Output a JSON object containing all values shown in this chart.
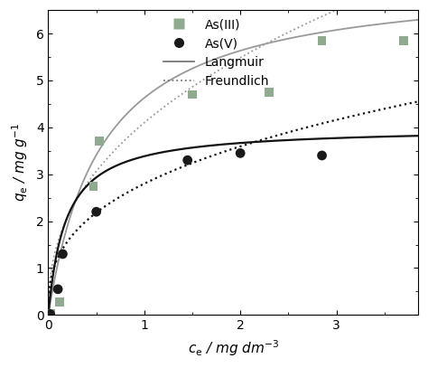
{
  "title": "",
  "xlabel": "$c_\\mathrm{e}$ / mg dm$^{-3}$",
  "ylabel": "$q_\\mathrm{e}$ / mg g$^{-1}$",
  "xlim": [
    0,
    3.85
  ],
  "ylim": [
    0,
    6.5
  ],
  "xticks": [
    0,
    1,
    2,
    3
  ],
  "yticks": [
    0,
    1,
    2,
    3,
    4,
    5,
    6
  ],
  "AsIII_x": [
    0.02,
    0.12,
    0.47,
    0.53,
    1.5,
    2.3,
    2.85,
    3.7
  ],
  "AsIII_y": [
    0.02,
    0.27,
    2.75,
    3.7,
    4.7,
    4.75,
    5.85,
    5.85
  ],
  "AsV_x": [
    0.02,
    0.1,
    0.15,
    0.5,
    1.45,
    2.0,
    2.85
  ],
  "AsV_y": [
    0.02,
    0.55,
    1.3,
    2.2,
    3.3,
    3.45,
    3.4
  ],
  "langmuir_AsIII_qmax": 7.2,
  "langmuir_AsIII_KL": 1.8,
  "freundlich_AsIII_KF": 4.1,
  "freundlich_AsIII_n": 0.42,
  "langmuir_AsV_qmax": 4.0,
  "langmuir_AsV_KL": 5.5,
  "freundlich_AsV_KF": 2.8,
  "freundlich_AsV_n": 0.36,
  "AsIII_color": "#8faa8f",
  "AsV_color": "#1a1a1a",
  "curve_III_color": "#999999",
  "curve_V_color": "#111111",
  "legend_fontsize": 10,
  "axis_fontsize": 11,
  "tick_fontsize": 10
}
